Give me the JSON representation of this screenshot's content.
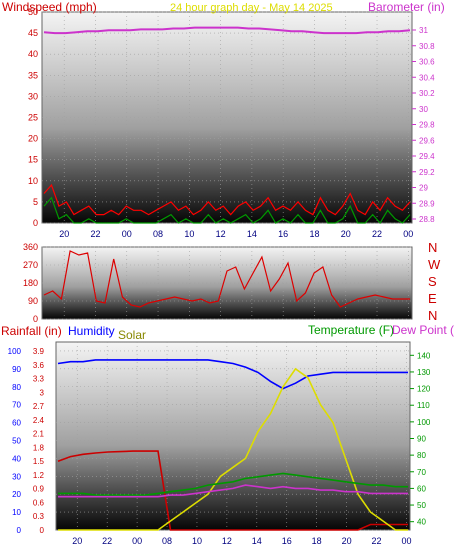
{
  "title": "24 hour graph day - May 14 2025",
  "colors": {
    "windspeed": "#cc0000",
    "gust": "#ff0000",
    "wind_avg": "#009900",
    "wind_dark": "#000080",
    "barometer": "#cc33cc",
    "winddir": "#dd0000",
    "rainfall": "#cc0000",
    "humidity": "#0000ff",
    "solar": "#dddd00",
    "solar_label": "#888800",
    "temperature": "#009900",
    "dewpoint": "#cc33cc",
    "grid": "#a0a0a0"
  },
  "chart_data": [
    {
      "type": "line",
      "panel": "wind",
      "title": "24 hour graph day - May 14 2025",
      "xlabel": "Windspeed (mph)",
      "ylabel": "Barometer (in)",
      "x_ticks": [
        "20",
        "22",
        "00",
        "08",
        "10",
        "12",
        "14",
        "16",
        "18",
        "20",
        "22",
        "00"
      ],
      "y_left_ticks": [
        "0",
        "5",
        "10",
        "15",
        "20",
        "25",
        "30",
        "35",
        "40",
        "45",
        "50"
      ],
      "y_right_ticks": [
        "28.8",
        "28.9",
        "29",
        "29.2",
        "29.4",
        "29.6",
        "29.8",
        "30",
        "30.2",
        "30.4",
        "30.6",
        "30.8",
        "31"
      ],
      "ylim_left": [
        0,
        50
      ],
      "ylim_right": [
        28.8,
        31.1
      ],
      "series": [
        {
          "name": "Windspeed",
          "axis": "left",
          "values": [
            7,
            9,
            4,
            5,
            2,
            3,
            4,
            2,
            2,
            3,
            2,
            4,
            3,
            3,
            2,
            3,
            4,
            5,
            3,
            4,
            2,
            3,
            5,
            3,
            4,
            2,
            4,
            5,
            3,
            4,
            6,
            3,
            4,
            3,
            5,
            3,
            2,
            6,
            3,
            2,
            4,
            7,
            3,
            2,
            5,
            3,
            6,
            4,
            3,
            5
          ]
        },
        {
          "name": "Barometer",
          "axis": "right",
          "values": [
            30.88,
            30.87,
            30.87,
            30.88,
            30.89,
            30.89,
            30.9,
            30.9,
            30.9,
            30.91,
            30.91,
            30.91,
            30.92,
            30.92,
            30.93,
            30.93,
            30.93,
            30.93,
            30.93,
            30.92,
            30.92,
            30.91,
            30.9,
            30.89,
            30.89,
            30.88,
            30.87,
            30.87,
            30.87,
            30.87,
            30.88,
            30.88,
            30.89,
            30.89,
            30.9
          ]
        }
      ]
    },
    {
      "type": "line",
      "panel": "wind_direction",
      "y_ticks": [
        "0",
        "90",
        "180",
        "270",
        "360"
      ],
      "ylim": [
        0,
        360
      ],
      "compass_labels": [
        "N",
        "W",
        "S",
        "E",
        "N"
      ],
      "series": [
        {
          "name": "Wind direction",
          "values": [
            120,
            140,
            100,
            340,
            320,
            330,
            90,
            80,
            300,
            110,
            70,
            60,
            80,
            90,
            100,
            110,
            100,
            90,
            100,
            80,
            90,
            240,
            260,
            150,
            230,
            310,
            140,
            200,
            280,
            90,
            130,
            230,
            260,
            120,
            60,
            80,
            100,
            110,
            120,
            110,
            100,
            100,
            100
          ]
        }
      ]
    },
    {
      "type": "line",
      "panel": "rain_humidity_solar_temp",
      "x_ticks": [
        "20",
        "22",
        "00",
        "08",
        "10",
        "12",
        "14",
        "16",
        "18",
        "20",
        "22",
        "00"
      ],
      "legend": [
        "Rainfall (in)",
        "Humidity",
        "Solar",
        "Temperature (F)",
        "Dew Point ("
      ],
      "y_rain_ticks": [
        "0",
        "0.3",
        "0.6",
        "0.9",
        "1.2",
        "1.5",
        "1.8",
        "2.1",
        "2.4",
        "2.7",
        "3",
        "3.3",
        "3.6",
        "3.9"
      ],
      "y_humidity_ticks": [
        "0",
        "10",
        "20",
        "30",
        "40",
        "50",
        "60",
        "70",
        "80",
        "90",
        "100"
      ],
      "y_temp_ticks": [
        "40",
        "50",
        "60",
        "70",
        "80",
        "90",
        "100",
        "110",
        "120",
        "130",
        "140"
      ],
      "ylim_rain": [
        0,
        4.1
      ],
      "ylim_humidity": [
        0,
        105
      ],
      "ylim_temp": [
        35,
        148
      ],
      "series": [
        {
          "name": "Rainfall (in)",
          "axis": "rain",
          "values": [
            1.5,
            1.6,
            1.65,
            1.68,
            1.7,
            1.71,
            1.72,
            1.72,
            1.72,
            0,
            0,
            0,
            0,
            0,
            0,
            0,
            0,
            0,
            0,
            0,
            0,
            0,
            0,
            0,
            0,
            0.12,
            0.12,
            0.12,
            0.12
          ]
        },
        {
          "name": "Humidity",
          "axis": "humidity",
          "values": [
            93,
            94,
            94,
            95,
            95,
            95,
            95,
            95,
            95,
            95,
            95,
            95,
            95,
            94,
            93,
            91,
            88,
            83,
            79,
            82,
            86,
            87,
            88,
            88,
            88,
            88,
            88,
            88,
            88
          ]
        },
        {
          "name": "Solar",
          "axis": "solar",
          "values": [
            0,
            0,
            0,
            0,
            0,
            0,
            0,
            0,
            0,
            5,
            10,
            15,
            20,
            30,
            35,
            40,
            55,
            65,
            80,
            90,
            85,
            70,
            60,
            40,
            20,
            10,
            5,
            0,
            0
          ]
        },
        {
          "name": "Temperature (F)",
          "axis": "temp",
          "values": [
            57,
            57,
            57,
            56,
            56,
            56,
            56,
            56,
            57,
            58,
            59,
            60,
            62,
            63,
            64,
            66,
            67,
            68,
            69,
            68,
            67,
            66,
            65,
            64,
            63,
            62,
            62,
            61,
            61
          ]
        },
        {
          "name": "Dew Point (",
          "axis": "temp",
          "values": [
            55,
            55,
            55,
            55,
            55,
            55,
            55,
            55,
            55,
            56,
            56,
            57,
            58,
            59,
            60,
            62,
            61,
            60,
            61,
            60,
            60,
            59,
            59,
            58,
            58,
            57,
            57,
            57,
            57
          ]
        }
      ]
    }
  ]
}
